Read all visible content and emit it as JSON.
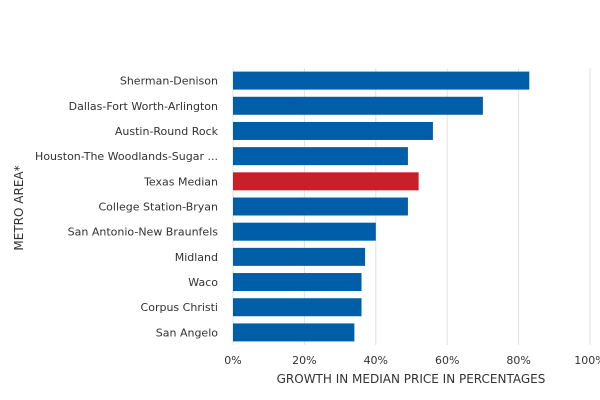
{
  "chart_data": {
    "type": "bar",
    "orientation": "horizontal",
    "categories": [
      "Sherman-Denison",
      "Dallas-Fort Worth-Arlington",
      "Austin-Round Rock",
      "Houston-The Woodlands-Sugar ...",
      "Texas Median",
      "College Station-Bryan",
      "San Antonio-New Braunfels",
      "Midland",
      "Waco",
      "Corpus Christi",
      "San Angelo"
    ],
    "values": [
      83,
      70,
      56,
      49,
      52,
      49,
      40,
      37,
      36,
      36,
      34
    ],
    "highlight_index": 4,
    "colors": {
      "bar": "#005ea8",
      "highlight": "#c8202a",
      "grid": "#e0e0e0",
      "text": "#333333"
    },
    "xlabel": "GROWTH IN MEDIAN PRICE IN PERCENTAGES",
    "ylabel": "METRO AREA*",
    "xlim": [
      0,
      100
    ],
    "xticks": [
      0,
      20,
      40,
      60,
      80,
      100
    ],
    "tick_suffix": "%",
    "grid": true,
    "legend": "none"
  }
}
